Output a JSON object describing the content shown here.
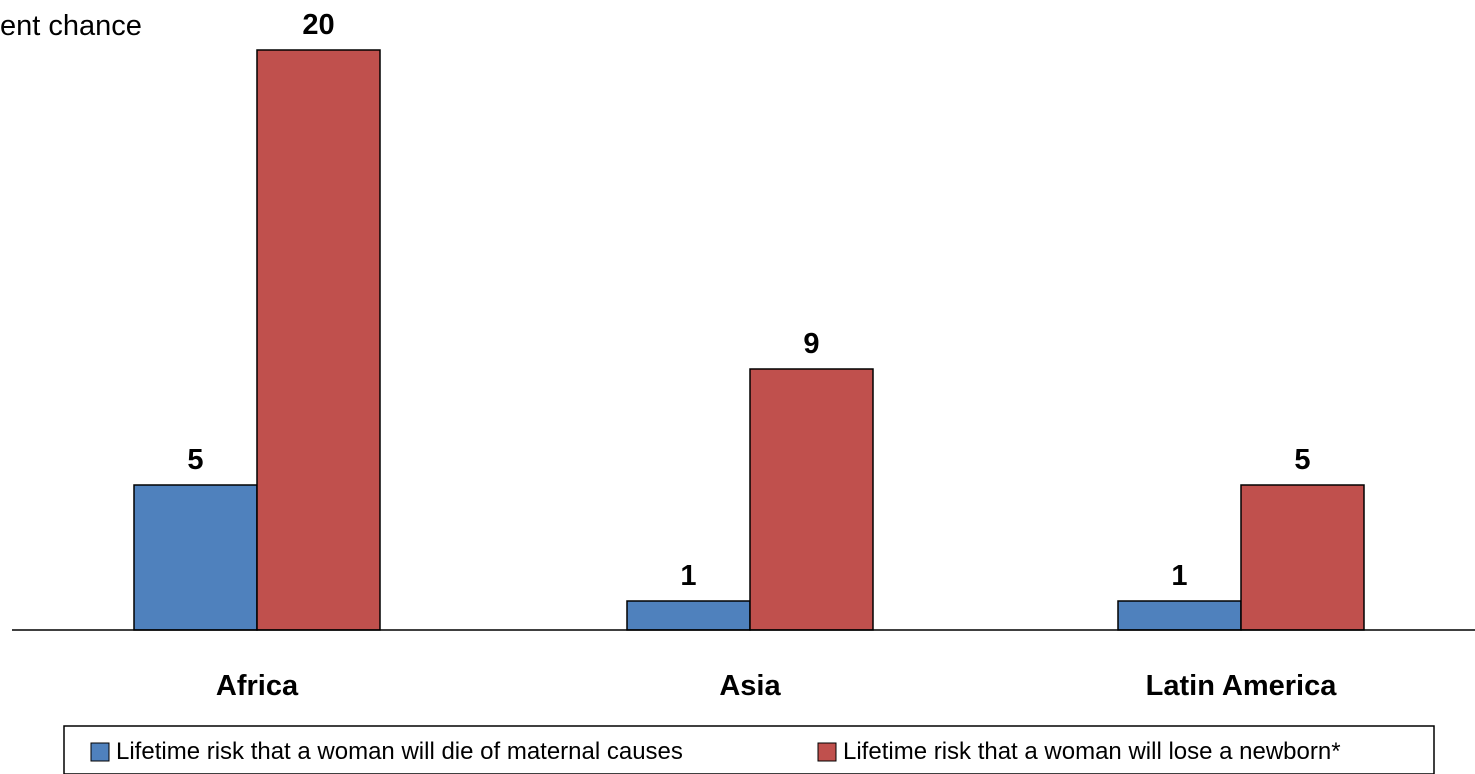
{
  "chart_data": {
    "type": "bar",
    "unit_label": "ent chance",
    "categories": [
      "Africa",
      "Asia",
      "Latin America"
    ],
    "series": [
      {
        "name": "Lifetime risk that a woman will die of maternal causes",
        "values": [
          5,
          1,
          1
        ],
        "color": "#4F81BD"
      },
      {
        "name": "Lifetime risk that a woman will lose a newborn*",
        "values": [
          20,
          9,
          5
        ],
        "color": "#C0504D"
      }
    ],
    "data_labels": [
      [
        "5",
        "1",
        "1"
      ],
      [
        "20",
        "9",
        "5"
      ]
    ],
    "ylim": [
      0,
      20
    ],
    "grid": false,
    "legend_position": "bottom"
  }
}
